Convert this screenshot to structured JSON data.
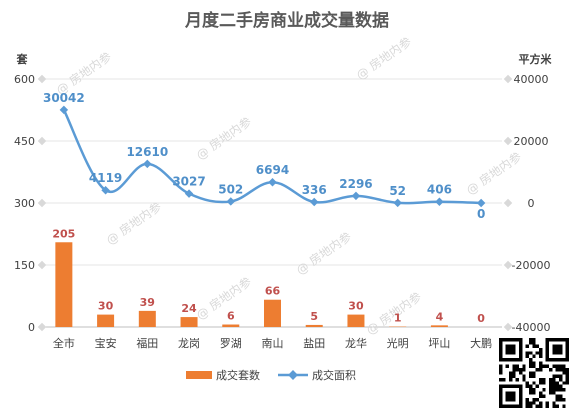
{
  "chart_data": {
    "type": "bar+line",
    "title": "月度二手房商业成交量数据",
    "categories": [
      "全市",
      "宝安",
      "福田",
      "龙岗",
      "罗湖",
      "南山",
      "盐田",
      "龙华",
      "光明",
      "坪山",
      "大鹏"
    ],
    "series": [
      {
        "name": "成交套数",
        "type": "bar",
        "axis": "left",
        "values": [
          205,
          30,
          39,
          24,
          6,
          66,
          5,
          30,
          1,
          4,
          0
        ],
        "color": "#ed7d31"
      },
      {
        "name": "成交面积",
        "type": "line",
        "axis": "right",
        "values": [
          30042,
          4119,
          12610,
          3027,
          502,
          6694,
          336,
          2296,
          52,
          406,
          0
        ],
        "color": "#5b9bd5"
      }
    ],
    "left_axis": {
      "unit": "套",
      "range": [
        0,
        600
      ],
      "ticks": [
        "0",
        "150",
        "300",
        "450",
        "600"
      ]
    },
    "right_axis": {
      "unit": "平方米",
      "range": [
        -40000,
        40000
      ],
      "ticks": [
        "-40000",
        "-20000",
        "0",
        "20000",
        "40000"
      ]
    },
    "grid": true,
    "legend_position": "bottom"
  },
  "watermark_text": "@ 房地内参",
  "qr_code_icon": "qr-code-icon"
}
